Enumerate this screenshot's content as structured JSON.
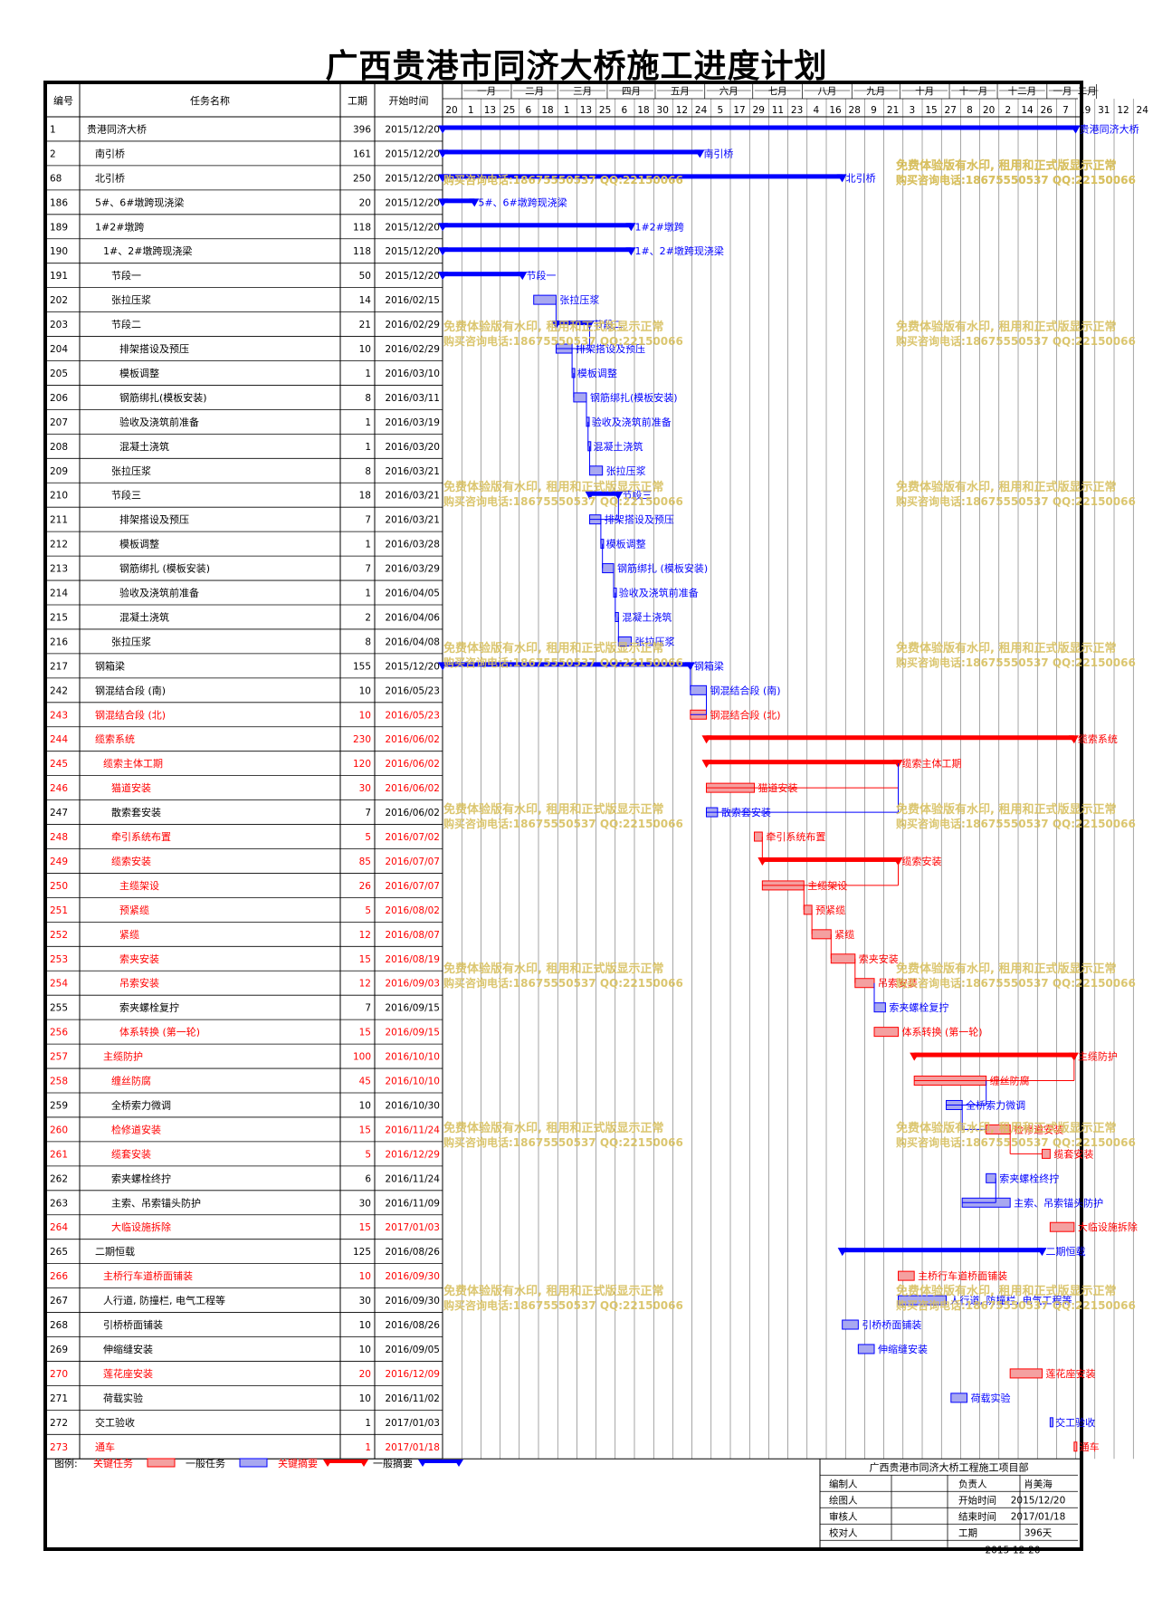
{
  "title": "广西贵港市同济大桥施工进度计划",
  "headers": {
    "id": "编号",
    "name": "任务名称",
    "dur": "工期",
    "start": "开始时间"
  },
  "months": [
    "一月",
    "二月",
    "三月",
    "四月",
    "五月",
    "六月",
    "七月",
    "八月",
    "九月",
    "十月",
    "十一月",
    "十二月",
    "一月",
    "二月"
  ],
  "days": [
    "20",
    "1",
    "13",
    "25",
    "6",
    "18",
    "1",
    "13",
    "25",
    "6",
    "18",
    "30",
    "12",
    "24",
    "5",
    "17",
    "29",
    "11",
    "23",
    "4",
    "16",
    "28",
    "9",
    "21",
    "3",
    "15",
    "27",
    "8",
    "20",
    "2",
    "14",
    "26",
    "7",
    "19",
    "31",
    "12",
    "24"
  ],
  "colors": {
    "critical": "#FF0000",
    "normal": "#0000FF",
    "critical_fill": "#F4A0A0",
    "normal_fill": "#A8A8F0",
    "watermark": "#D8C060"
  },
  "chart_data": {
    "type": "gantt",
    "date_range": [
      "2015-12-20",
      "2017-02-28"
    ],
    "tasks": [
      {
        "id": "1",
        "name": "贵港同济大桥",
        "dur": "396",
        "start": "2015/12/20",
        "level": 0,
        "kind": "summary",
        "critical": false,
        "label": "贵港同济大桥"
      },
      {
        "id": "2",
        "name": "南引桥",
        "dur": "161",
        "start": "2015/12/20",
        "level": 1,
        "kind": "summary",
        "critical": false,
        "label": "南引桥"
      },
      {
        "id": "68",
        "name": "北引桥",
        "dur": "250",
        "start": "2015/12/20",
        "level": 1,
        "kind": "summary",
        "critical": false,
        "label": "北引桥"
      },
      {
        "id": "186",
        "name": "5#、6#墩跨现浇梁",
        "dur": "20",
        "start": "2015/12/20",
        "level": 1,
        "kind": "summary",
        "critical": false,
        "label": "5#、6#墩跨现浇梁"
      },
      {
        "id": "189",
        "name": "1#2#墩跨",
        "dur": "118",
        "start": "2015/12/20",
        "level": 1,
        "kind": "summary",
        "critical": false,
        "label": "1#2#墩跨"
      },
      {
        "id": "190",
        "name": "1#、2#墩跨现浇梁",
        "dur": "118",
        "start": "2015/12/20",
        "level": 2,
        "kind": "summary",
        "critical": false,
        "label": "1#、2#墩跨现浇梁"
      },
      {
        "id": "191",
        "name": "节段一",
        "dur": "50",
        "start": "2015/12/20",
        "level": 3,
        "kind": "summary",
        "critical": false,
        "label": "节段一"
      },
      {
        "id": "202",
        "name": "张拉压浆",
        "dur": "14",
        "start": "2016/02/15",
        "level": 3,
        "kind": "task",
        "critical": false,
        "label": "张拉压浆"
      },
      {
        "id": "203",
        "name": "节段二",
        "dur": "21",
        "start": "2016/02/29",
        "level": 3,
        "kind": "summary",
        "critical": false,
        "label": "节段二"
      },
      {
        "id": "204",
        "name": "排架搭设及预压",
        "dur": "10",
        "start": "2016/02/29",
        "level": 4,
        "kind": "task",
        "critical": false,
        "label": "排架搭设及预压"
      },
      {
        "id": "205",
        "name": "模板调整",
        "dur": "1",
        "start": "2016/03/10",
        "level": 4,
        "kind": "task",
        "critical": false,
        "label": "模板调整"
      },
      {
        "id": "206",
        "name": "钢筋绑扎(模板安装)",
        "dur": "8",
        "start": "2016/03/11",
        "level": 4,
        "kind": "task",
        "critical": false,
        "label": "钢筋绑扎(模板安装)"
      },
      {
        "id": "207",
        "name": "验收及浇筑前准备",
        "dur": "1",
        "start": "2016/03/19",
        "level": 4,
        "kind": "task",
        "critical": false,
        "label": "验收及浇筑前准备"
      },
      {
        "id": "208",
        "name": "混凝土浇筑",
        "dur": "1",
        "start": "2016/03/20",
        "level": 4,
        "kind": "task",
        "critical": false,
        "label": "混凝土浇筑"
      },
      {
        "id": "209",
        "name": "张拉压浆",
        "dur": "8",
        "start": "2016/03/21",
        "level": 3,
        "kind": "task",
        "critical": false,
        "label": "张拉压浆"
      },
      {
        "id": "210",
        "name": "节段三",
        "dur": "18",
        "start": "2016/03/21",
        "level": 3,
        "kind": "summary",
        "critical": false,
        "label": "节段三"
      },
      {
        "id": "211",
        "name": "排架搭设及预压",
        "dur": "7",
        "start": "2016/03/21",
        "level": 4,
        "kind": "task",
        "critical": false,
        "label": "排架搭设及预压"
      },
      {
        "id": "212",
        "name": "模板调整",
        "dur": "1",
        "start": "2016/03/28",
        "level": 4,
        "kind": "task",
        "critical": false,
        "label": "模板调整"
      },
      {
        "id": "213",
        "name": "钢筋绑扎 (模板安装)",
        "dur": "7",
        "start": "2016/03/29",
        "level": 4,
        "kind": "task",
        "critical": false,
        "label": "钢筋绑扎 (模板安装)"
      },
      {
        "id": "214",
        "name": "验收及浇筑前准备",
        "dur": "1",
        "start": "2016/04/05",
        "level": 4,
        "kind": "task",
        "critical": false,
        "label": "验收及浇筑前准备"
      },
      {
        "id": "215",
        "name": "混凝土浇筑",
        "dur": "2",
        "start": "2016/04/06",
        "level": 4,
        "kind": "task",
        "critical": false,
        "label": "混凝土浇筑"
      },
      {
        "id": "216",
        "name": "张拉压浆",
        "dur": "8",
        "start": "2016/04/08",
        "level": 3,
        "kind": "task",
        "critical": false,
        "label": "张拉压浆"
      },
      {
        "id": "217",
        "name": "钢箱梁",
        "dur": "155",
        "start": "2015/12/20",
        "level": 1,
        "kind": "summary",
        "critical": false,
        "label": "钢箱梁"
      },
      {
        "id": "242",
        "name": "钢混结合段 (南)",
        "dur": "10",
        "start": "2016/05/23",
        "level": 1,
        "kind": "task",
        "critical": false,
        "label": "钢混结合段 (南)"
      },
      {
        "id": "243",
        "name": "钢混结合段 (北)",
        "dur": "10",
        "start": "2016/05/23",
        "level": 1,
        "kind": "task",
        "critical": true,
        "label": "钢混结合段 (北)"
      },
      {
        "id": "244",
        "name": "缆索系统",
        "dur": "230",
        "start": "2016/06/02",
        "level": 1,
        "kind": "summary",
        "critical": true,
        "label": "缆索系统"
      },
      {
        "id": "245",
        "name": "缆索主体工期",
        "dur": "120",
        "start": "2016/06/02",
        "level": 2,
        "kind": "summary",
        "critical": true,
        "label": "缆索主体工期"
      },
      {
        "id": "246",
        "name": "猫道安装",
        "dur": "30",
        "start": "2016/06/02",
        "level": 3,
        "kind": "task",
        "critical": true,
        "label": "猫道安装"
      },
      {
        "id": "247",
        "name": "散索套安装",
        "dur": "7",
        "start": "2016/06/02",
        "level": 3,
        "kind": "task",
        "critical": false,
        "label": "散索套安装"
      },
      {
        "id": "248",
        "name": "牵引系统布置",
        "dur": "5",
        "start": "2016/07/02",
        "level": 3,
        "kind": "task",
        "critical": true,
        "label": "牵引系统布置"
      },
      {
        "id": "249",
        "name": "缆索安装",
        "dur": "85",
        "start": "2016/07/07",
        "level": 3,
        "kind": "summary",
        "critical": true,
        "label": "缆索安装"
      },
      {
        "id": "250",
        "name": "主缆架设",
        "dur": "26",
        "start": "2016/07/07",
        "level": 4,
        "kind": "task",
        "critical": true,
        "label": "主缆架设"
      },
      {
        "id": "251",
        "name": "预紧缆",
        "dur": "5",
        "start": "2016/08/02",
        "level": 4,
        "kind": "task",
        "critical": true,
        "label": "预紧缆"
      },
      {
        "id": "252",
        "name": "紧缆",
        "dur": "12",
        "start": "2016/08/07",
        "level": 4,
        "kind": "task",
        "critical": true,
        "label": "紧缆"
      },
      {
        "id": "253",
        "name": "索夹安装",
        "dur": "15",
        "start": "2016/08/19",
        "level": 4,
        "kind": "task",
        "critical": true,
        "label": "索夹安装"
      },
      {
        "id": "254",
        "name": "吊索安装",
        "dur": "12",
        "start": "2016/09/03",
        "level": 4,
        "kind": "task",
        "critical": true,
        "label": "吊索安装"
      },
      {
        "id": "255",
        "name": "索夹螺栓复拧",
        "dur": "7",
        "start": "2016/09/15",
        "level": 4,
        "kind": "task",
        "critical": false,
        "label": "索夹螺栓复拧"
      },
      {
        "id": "256",
        "name": "体系转换 (第一轮)",
        "dur": "15",
        "start": "2016/09/15",
        "level": 4,
        "kind": "task",
        "critical": true,
        "label": "体系转换 (第一轮)"
      },
      {
        "id": "257",
        "name": "主缆防护",
        "dur": "100",
        "start": "2016/10/10",
        "level": 2,
        "kind": "summary",
        "critical": true,
        "label": "主缆防护"
      },
      {
        "id": "258",
        "name": "缠丝防腐",
        "dur": "45",
        "start": "2016/10/10",
        "level": 3,
        "kind": "task",
        "critical": true,
        "label": "缠丝防腐"
      },
      {
        "id": "259",
        "name": "全桥索力微调",
        "dur": "10",
        "start": "2016/10/30",
        "level": 3,
        "kind": "task",
        "critical": false,
        "label": "全桥索力微调"
      },
      {
        "id": "260",
        "name": "检修道安装",
        "dur": "15",
        "start": "2016/11/24",
        "level": 3,
        "kind": "task",
        "critical": true,
        "label": "检修道安装"
      },
      {
        "id": "261",
        "name": "缆套安装",
        "dur": "5",
        "start": "2016/12/29",
        "level": 3,
        "kind": "task",
        "critical": true,
        "label": "缆套安装"
      },
      {
        "id": "262",
        "name": "索夹螺栓终拧",
        "dur": "6",
        "start": "2016/11/24",
        "level": 3,
        "kind": "task",
        "critical": false,
        "label": "索夹螺栓终拧"
      },
      {
        "id": "263",
        "name": "主索、吊索锚头防护",
        "dur": "30",
        "start": "2016/11/09",
        "level": 3,
        "kind": "task",
        "critical": false,
        "label": "主索、吊索锚头防护"
      },
      {
        "id": "264",
        "name": "大临设施拆除",
        "dur": "15",
        "start": "2017/01/03",
        "level": 3,
        "kind": "task",
        "critical": true,
        "label": "大临设施拆除"
      },
      {
        "id": "265",
        "name": "二期恒载",
        "dur": "125",
        "start": "2016/08/26",
        "level": 1,
        "kind": "summary",
        "critical": false,
        "label": "二期恒载"
      },
      {
        "id": "266",
        "name": "主桥行车道桥面铺装",
        "dur": "10",
        "start": "2016/09/30",
        "level": 2,
        "kind": "task",
        "critical": true,
        "label": "主桥行车道桥面铺装"
      },
      {
        "id": "267",
        "name": "人行道, 防撞栏, 电气工程等",
        "dur": "30",
        "start": "2016/09/30",
        "level": 2,
        "kind": "task",
        "critical": false,
        "label": "人行道, 防撞栏, 电气工程等"
      },
      {
        "id": "268",
        "name": "引桥桥面铺装",
        "dur": "10",
        "start": "2016/08/26",
        "level": 2,
        "kind": "task",
        "critical": false,
        "label": "引桥桥面铺装"
      },
      {
        "id": "269",
        "name": "伸缩缝安装",
        "dur": "10",
        "start": "2016/09/05",
        "level": 2,
        "kind": "task",
        "critical": false,
        "label": "伸缩缝安装"
      },
      {
        "id": "270",
        "name": "莲花座安装",
        "dur": "20",
        "start": "2016/12/09",
        "level": 2,
        "kind": "task",
        "critical": true,
        "label": "莲花座安装"
      },
      {
        "id": "271",
        "name": "荷载实验",
        "dur": "10",
        "start": "2016/11/02",
        "level": 2,
        "kind": "task",
        "critical": false,
        "label": "荷载实验"
      },
      {
        "id": "272",
        "name": "交工验收",
        "dur": "1",
        "start": "2017/01/03",
        "level": 1,
        "kind": "task",
        "critical": false,
        "label": "交工验收"
      },
      {
        "id": "273",
        "name": "通车",
        "dur": "1",
        "start": "2017/01/18",
        "level": 1,
        "kind": "task",
        "critical": true,
        "label": "通车"
      }
    ]
  },
  "watermark": {
    "line1": "免费体验版有水印, 租用和正式版显示正常",
    "line2": "购买咨询电话:18675550537 QQ:22150066"
  },
  "legend": {
    "title": "图例:",
    "critical_task": "关键任务",
    "normal_task": "一般任务",
    "critical_summary": "关键摘要",
    "normal_summary": "一般摘要"
  },
  "footer": {
    "org": "广西贵港市同济大桥工程施工项目部",
    "rows": [
      {
        "a": "编制人",
        "b": "",
        "c": "负责人",
        "d": "肖美海"
      },
      {
        "a": "绘图人",
        "b": "",
        "c": "开始时间",
        "d": "2015/12/20"
      },
      {
        "a": "审核人",
        "b": "",
        "c": "结束时间",
        "d": "2017/01/18"
      },
      {
        "a": "校对人",
        "b": "",
        "c": "工期",
        "d": "396天"
      }
    ],
    "date": "2015-12-20"
  }
}
